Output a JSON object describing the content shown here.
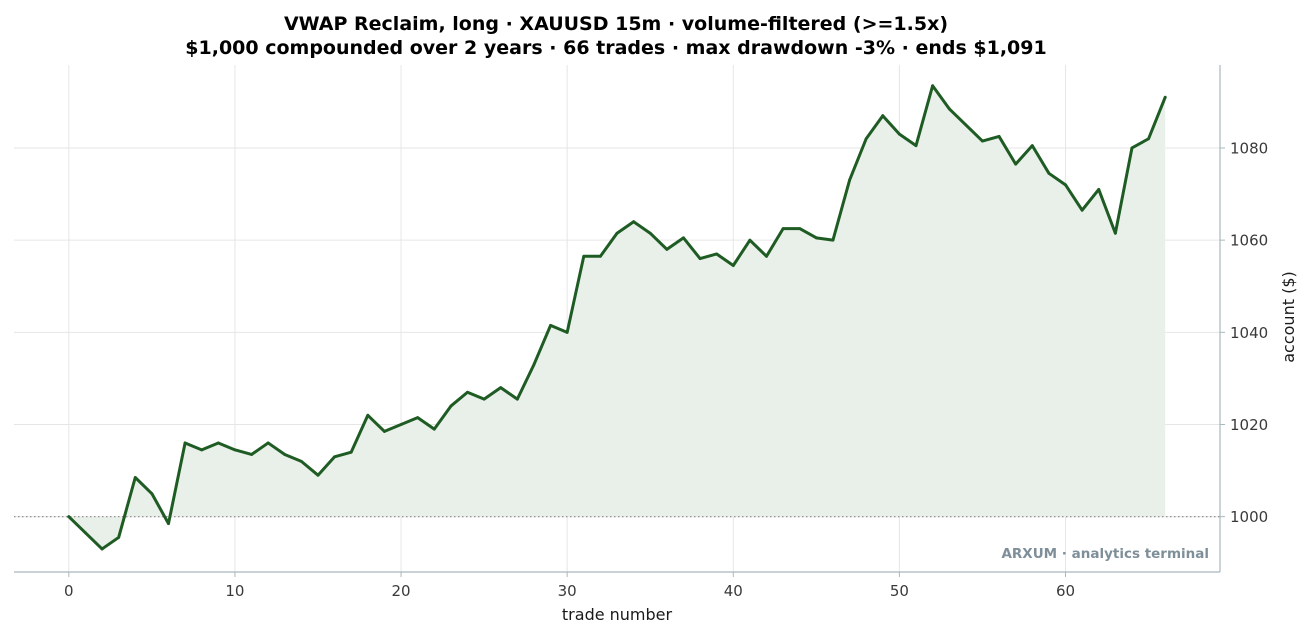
{
  "chart_data": {
    "type": "area",
    "title": "VWAP Reclaim, long · XAUUSD 15m · volume-filtered (>=1.5x)",
    "subtitle": "$1,000 compounded over 2 years · 66 trades · max drawdown -3% · ends $1,091",
    "xlabel": "trade number",
    "ylabel": "account ($)",
    "xlim": [
      -3.3,
      69.3
    ],
    "ylim": [
      988,
      1098
    ],
    "x_ticks": [
      0,
      10,
      20,
      30,
      40,
      50,
      60
    ],
    "y_ticks": [
      1000,
      1020,
      1040,
      1060,
      1080
    ],
    "y_axis_side": "right",
    "grid": true,
    "baseline": 1000,
    "line_color": "#1f5c24",
    "fill_color": "#e9f0ea",
    "baseline_color": "#888888",
    "x": [
      0,
      1,
      2,
      3,
      4,
      5,
      6,
      7,
      8,
      9,
      10,
      11,
      12,
      13,
      14,
      15,
      16,
      17,
      18,
      19,
      20,
      21,
      22,
      23,
      24,
      25,
      26,
      27,
      28,
      29,
      30,
      31,
      32,
      33,
      34,
      35,
      36,
      37,
      38,
      39,
      40,
      41,
      42,
      43,
      44,
      45,
      46,
      47,
      48,
      49,
      50,
      51,
      52,
      53,
      54,
      55,
      56,
      57,
      58,
      59,
      60,
      61,
      62,
      63,
      64,
      65,
      66
    ],
    "values": [
      1000,
      996.5,
      993,
      995.5,
      1008.5,
      1005,
      998.5,
      1016,
      1014.5,
      1016,
      1014.5,
      1013.5,
      1016,
      1013.5,
      1012,
      1009,
      1013,
      1014,
      1022,
      1018.5,
      1020,
      1021.5,
      1019,
      1024,
      1027,
      1025.5,
      1028,
      1025.5,
      1033,
      1041.5,
      1040,
      1056.5,
      1056.5,
      1061.5,
      1064,
      1061.5,
      1058,
      1060.5,
      1056,
      1057,
      1054.5,
      1060,
      1056.5,
      1062.5,
      1062.5,
      1060.5,
      1060,
      1073,
      1082,
      1087,
      1083,
      1080.5,
      1093.5,
      1088.5,
      1085,
      1081.5,
      1082.5,
      1076.5,
      1080.5,
      1074.5,
      1072,
      1066.5,
      1071,
      1061.5,
      1080,
      1082,
      1091
    ]
  },
  "watermark": "ARXUM · analytics terminal"
}
